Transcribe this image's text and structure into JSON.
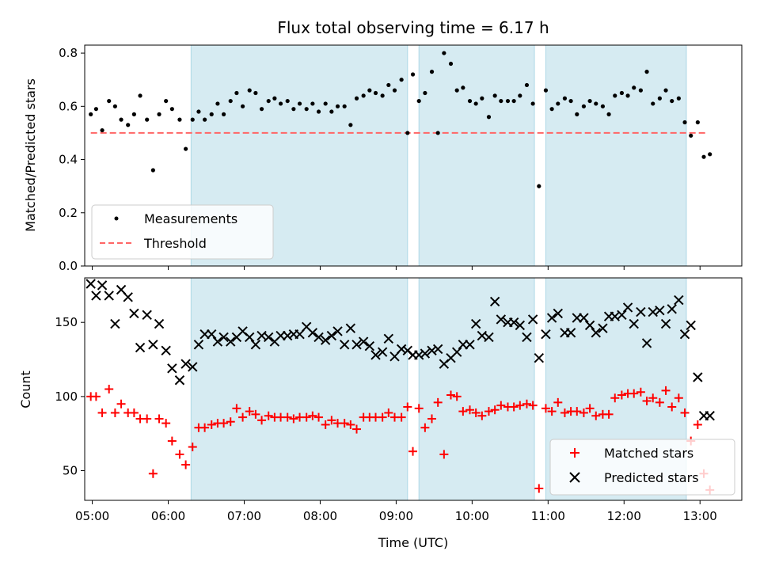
{
  "title": "Flux total observing time = 6.17 h",
  "colors": {
    "band": "#add8e6",
    "measurements": "#000000",
    "threshold": "#ff6666",
    "matched": "#ff0000",
    "predicted": "#000000"
  },
  "chart_data": [
    {
      "type": "scatter",
      "ylabel": "Matched/Predicted stars",
      "xlabel": "",
      "xlim": [
        4.9,
        13.55
      ],
      "ylim": [
        0,
        0.83
      ],
      "yticks": [
        "0.0",
        "0.2",
        "0.4",
        "0.6",
        "0.8"
      ],
      "ytick_values": [
        0,
        0.2,
        0.4,
        0.6,
        0.8
      ],
      "legend_position": "lower-left",
      "shaded_intervals": [
        [
          6.3,
          9.15
        ],
        [
          9.3,
          10.82
        ],
        [
          10.97,
          12.82
        ]
      ],
      "series": [
        {
          "name": "Measurements",
          "marker": "dot",
          "x": [
            4.98,
            5.05,
            5.13,
            5.22,
            5.3,
            5.38,
            5.47,
            5.55,
            5.63,
            5.72,
            5.8,
            5.88,
            5.97,
            6.05,
            6.15,
            6.23,
            6.32,
            6.4,
            6.48,
            6.57,
            6.65,
            6.73,
            6.82,
            6.9,
            6.98,
            7.07,
            7.15,
            7.23,
            7.32,
            7.4,
            7.48,
            7.57,
            7.65,
            7.73,
            7.82,
            7.9,
            7.98,
            8.07,
            8.15,
            8.23,
            8.32,
            8.4,
            8.48,
            8.57,
            8.65,
            8.73,
            8.82,
            8.9,
            8.98,
            9.07,
            9.15,
            9.22,
            9.3,
            9.38,
            9.47,
            9.55,
            9.63,
            9.72,
            9.8,
            9.88,
            9.97,
            10.05,
            10.13,
            10.22,
            10.3,
            10.38,
            10.47,
            10.55,
            10.63,
            10.72,
            10.8,
            10.88,
            10.97,
            11.05,
            11.13,
            11.22,
            11.3,
            11.38,
            11.47,
            11.55,
            11.63,
            11.72,
            11.8,
            11.88,
            11.97,
            12.05,
            12.13,
            12.22,
            12.3,
            12.38,
            12.47,
            12.55,
            12.63,
            12.72,
            12.8,
            12.88,
            12.97,
            13.05,
            13.13
          ],
          "y": [
            0.57,
            0.59,
            0.51,
            0.62,
            0.6,
            0.55,
            0.53,
            0.57,
            0.64,
            0.55,
            0.36,
            0.57,
            0.62,
            0.59,
            0.55,
            0.44,
            0.55,
            0.58,
            0.55,
            0.57,
            0.61,
            0.57,
            0.62,
            0.65,
            0.6,
            0.66,
            0.65,
            0.59,
            0.62,
            0.63,
            0.61,
            0.62,
            0.59,
            0.61,
            0.59,
            0.61,
            0.58,
            0.61,
            0.58,
            0.6,
            0.6,
            0.53,
            0.63,
            0.64,
            0.66,
            0.65,
            0.64,
            0.68,
            0.66,
            0.7,
            0.5,
            0.72,
            0.62,
            0.65,
            0.73,
            0.5,
            0.8,
            0.76,
            0.66,
            0.67,
            0.62,
            0.61,
            0.63,
            0.56,
            0.64,
            0.62,
            0.62,
            0.62,
            0.64,
            0.68,
            0.61,
            0.3,
            0.66,
            0.59,
            0.61,
            0.63,
            0.62,
            0.57,
            0.6,
            0.62,
            0.61,
            0.6,
            0.57,
            0.64,
            0.65,
            0.64,
            0.67,
            0.66,
            0.73,
            0.61,
            0.63,
            0.66,
            0.62,
            0.63,
            0.54,
            0.49,
            0.54,
            0.41,
            0.42
          ]
        },
        {
          "name": "Threshold",
          "style": "dashed",
          "x": [
            4.98,
            13.1
          ],
          "y": [
            0.5,
            0.5
          ]
        }
      ]
    },
    {
      "type": "scatter",
      "ylabel": "Count",
      "xlabel": "Time (UTC)",
      "xlim": [
        4.9,
        13.55
      ],
      "ylim": [
        30,
        180
      ],
      "yticks": [
        "50",
        "100",
        "150"
      ],
      "ytick_values": [
        50,
        100,
        150
      ],
      "xticks": [
        "05:00",
        "06:00",
        "07:00",
        "08:00",
        "09:00",
        "10:00",
        "11:00",
        "12:00",
        "13:00"
      ],
      "xtick_values": [
        5,
        6,
        7,
        8,
        9,
        10,
        11,
        12,
        13
      ],
      "legend_position": "lower-right",
      "shaded_intervals": [
        [
          6.3,
          9.15
        ],
        [
          9.3,
          10.82
        ],
        [
          10.97,
          12.82
        ]
      ],
      "series": [
        {
          "name": "Matched stars",
          "marker": "plus",
          "x": [
            4.98,
            5.05,
            5.13,
            5.22,
            5.3,
            5.38,
            5.47,
            5.55,
            5.63,
            5.72,
            5.8,
            5.88,
            5.97,
            6.05,
            6.15,
            6.23,
            6.32,
            6.4,
            6.48,
            6.57,
            6.65,
            6.73,
            6.82,
            6.9,
            6.98,
            7.07,
            7.15,
            7.23,
            7.32,
            7.4,
            7.48,
            7.57,
            7.65,
            7.73,
            7.82,
            7.9,
            7.98,
            8.07,
            8.15,
            8.23,
            8.32,
            8.4,
            8.48,
            8.57,
            8.65,
            8.73,
            8.82,
            8.9,
            8.98,
            9.07,
            9.15,
            9.22,
            9.3,
            9.38,
            9.47,
            9.55,
            9.63,
            9.72,
            9.8,
            9.88,
            9.97,
            10.05,
            10.13,
            10.22,
            10.3,
            10.38,
            10.47,
            10.55,
            10.63,
            10.72,
            10.8,
            10.88,
            10.97,
            11.05,
            11.13,
            11.22,
            11.3,
            11.38,
            11.47,
            11.55,
            11.63,
            11.72,
            11.8,
            11.88,
            11.97,
            12.05,
            12.13,
            12.22,
            12.3,
            12.38,
            12.47,
            12.55,
            12.63,
            12.72,
            12.8,
            12.88,
            12.97,
            13.05,
            13.13
          ],
          "y": [
            100,
            100,
            89,
            105,
            89,
            95,
            89,
            89,
            85,
            85,
            48,
            85,
            82,
            70,
            61,
            54,
            66,
            79,
            79,
            81,
            82,
            82,
            83,
            92,
            86,
            90,
            88,
            84,
            87,
            86,
            86,
            86,
            85,
            86,
            86,
            87,
            86,
            81,
            84,
            82,
            82,
            81,
            78,
            86,
            86,
            86,
            86,
            89,
            86,
            86,
            93,
            63,
            92,
            79,
            85,
            96,
            61,
            101,
            100,
            90,
            91,
            89,
            87,
            90,
            91,
            94,
            93,
            93,
            94,
            95,
            94,
            38,
            92,
            90,
            96,
            89,
            90,
            90,
            89,
            92,
            87,
            88,
            88,
            99,
            101,
            102,
            102,
            103,
            97,
            99,
            96,
            104,
            93,
            99,
            89,
            70,
            81,
            48,
            37
          ]
        },
        {
          "name": "Predicted stars",
          "marker": "x",
          "x": [
            4.98,
            5.05,
            5.13,
            5.22,
            5.3,
            5.38,
            5.47,
            5.55,
            5.63,
            5.72,
            5.8,
            5.88,
            5.97,
            6.05,
            6.15,
            6.23,
            6.32,
            6.4,
            6.48,
            6.57,
            6.65,
            6.73,
            6.82,
            6.9,
            6.98,
            7.07,
            7.15,
            7.23,
            7.32,
            7.4,
            7.48,
            7.57,
            7.65,
            7.73,
            7.82,
            7.9,
            7.98,
            8.07,
            8.15,
            8.23,
            8.32,
            8.4,
            8.48,
            8.57,
            8.65,
            8.73,
            8.82,
            8.9,
            8.98,
            9.07,
            9.15,
            9.22,
            9.3,
            9.38,
            9.47,
            9.55,
            9.63,
            9.72,
            9.8,
            9.88,
            9.97,
            10.05,
            10.13,
            10.22,
            10.3,
            10.38,
            10.47,
            10.55,
            10.63,
            10.72,
            10.8,
            10.88,
            10.97,
            11.05,
            11.13,
            11.22,
            11.3,
            11.38,
            11.47,
            11.55,
            11.63,
            11.72,
            11.8,
            11.88,
            11.97,
            12.05,
            12.13,
            12.22,
            12.3,
            12.38,
            12.47,
            12.55,
            12.63,
            12.72,
            12.8,
            12.88,
            12.97,
            13.05,
            13.13
          ],
          "y": [
            176,
            168,
            175,
            168,
            149,
            172,
            167,
            156,
            133,
            155,
            135,
            149,
            131,
            119,
            111,
            122,
            120,
            135,
            142,
            142,
            137,
            140,
            137,
            140,
            144,
            140,
            135,
            141,
            140,
            137,
            141,
            141,
            142,
            142,
            147,
            143,
            140,
            138,
            141,
            144,
            135,
            146,
            135,
            137,
            134,
            128,
            130,
            139,
            127,
            132,
            131,
            128,
            128,
            129,
            131,
            132,
            122,
            126,
            130,
            135,
            135,
            149,
            141,
            140,
            164,
            152,
            150,
            150,
            148,
            140,
            152,
            126,
            142,
            153,
            156,
            143,
            143,
            153,
            153,
            148,
            143,
            146,
            154,
            154,
            155,
            160,
            149,
            157,
            136,
            157,
            158,
            149,
            159,
            165,
            142,
            148,
            113,
            87,
            87
          ]
        }
      ]
    }
  ]
}
